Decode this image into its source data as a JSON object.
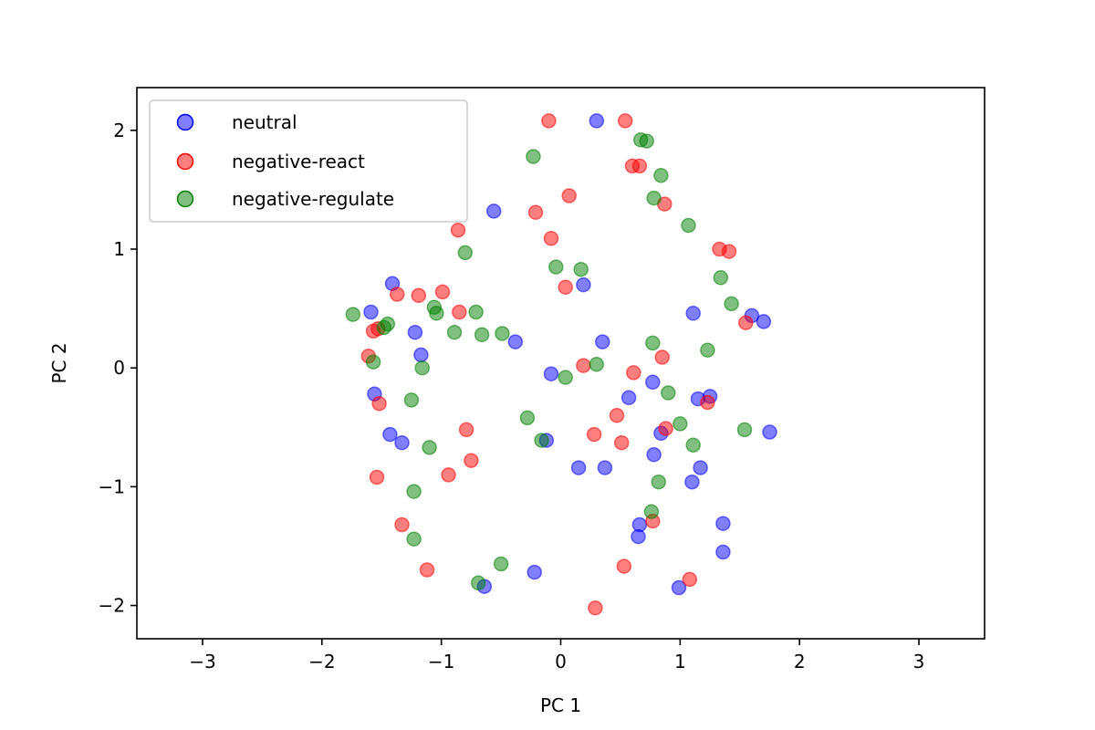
{
  "chart_data": {
    "type": "scatter",
    "title": "",
    "xlabel": "PC 1",
    "ylabel": "PC 2",
    "xlim": [
      -3.55,
      3.55
    ],
    "ylim": [
      -2.28,
      2.36
    ],
    "xticks": [
      -3,
      -2,
      -1,
      0,
      1,
      2,
      3
    ],
    "yticks": [
      -2,
      -1,
      0,
      1,
      2
    ],
    "grid": false,
    "legend_position": "upper-left",
    "series": [
      {
        "name": "neutral",
        "color": "#0000ff",
        "points": [
          [
            0.3,
            2.08
          ],
          [
            -0.56,
            1.32
          ],
          [
            0.19,
            0.7
          ],
          [
            -1.41,
            0.71
          ],
          [
            -1.59,
            0.47
          ],
          [
            -1.22,
            0.3
          ],
          [
            -1.17,
            0.11
          ],
          [
            -0.38,
            0.22
          ],
          [
            0.35,
            0.22
          ],
          [
            -1.56,
            -0.22
          ],
          [
            -1.43,
            -0.56
          ],
          [
            -1.33,
            -0.63
          ],
          [
            -0.08,
            -0.05
          ],
          [
            0.57,
            -0.25
          ],
          [
            0.77,
            -0.12
          ],
          [
            0.84,
            -0.55
          ],
          [
            0.78,
            -0.73
          ],
          [
            -0.12,
            -0.61
          ],
          [
            0.15,
            -0.84
          ],
          [
            0.37,
            -0.84
          ],
          [
            1.1,
            -0.96
          ],
          [
            1.17,
            -0.84
          ],
          [
            1.15,
            -0.26
          ],
          [
            1.25,
            -0.24
          ],
          [
            1.11,
            0.46
          ],
          [
            1.6,
            0.44
          ],
          [
            1.7,
            0.39
          ],
          [
            1.75,
            -0.54
          ],
          [
            1.36,
            -1.31
          ],
          [
            1.36,
            -1.55
          ],
          [
            0.66,
            -1.32
          ],
          [
            0.65,
            -1.42
          ],
          [
            -0.22,
            -1.72
          ],
          [
            -0.64,
            -1.84
          ],
          [
            0.99,
            -1.85
          ]
        ]
      },
      {
        "name": "negative-react",
        "color": "#ff0000",
        "points": [
          [
            -0.1,
            2.08
          ],
          [
            0.54,
            2.08
          ],
          [
            0.6,
            1.7
          ],
          [
            0.66,
            1.7
          ],
          [
            0.07,
            1.45
          ],
          [
            0.87,
            1.38
          ],
          [
            -0.21,
            1.31
          ],
          [
            -0.86,
            1.16
          ],
          [
            -0.08,
            1.09
          ],
          [
            1.33,
            1.0
          ],
          [
            1.41,
            0.98
          ],
          [
            -1.37,
            0.62
          ],
          [
            -1.19,
            0.61
          ],
          [
            -0.99,
            0.64
          ],
          [
            -0.85,
            0.47
          ],
          [
            0.04,
            0.68
          ],
          [
            -1.57,
            0.31
          ],
          [
            -1.53,
            0.33
          ],
          [
            -1.61,
            0.1
          ],
          [
            -1.52,
            -0.3
          ],
          [
            1.55,
            0.38
          ],
          [
            0.85,
            0.09
          ],
          [
            0.19,
            0.02
          ],
          [
            0.61,
            -0.04
          ],
          [
            1.23,
            -0.29
          ],
          [
            0.47,
            -0.4
          ],
          [
            0.28,
            -0.56
          ],
          [
            0.51,
            -0.63
          ],
          [
            0.88,
            -0.51
          ],
          [
            -0.79,
            -0.52
          ],
          [
            -0.75,
            -0.78
          ],
          [
            -0.94,
            -0.9
          ],
          [
            -1.54,
            -0.92
          ],
          [
            -1.33,
            -1.32
          ],
          [
            -1.12,
            -1.7
          ],
          [
            0.77,
            -1.29
          ],
          [
            0.53,
            -1.67
          ],
          [
            1.08,
            -1.78
          ],
          [
            0.29,
            -2.02
          ]
        ]
      },
      {
        "name": "negative-regulate",
        "color": "#008000",
        "points": [
          [
            -0.23,
            1.78
          ],
          [
            0.67,
            1.92
          ],
          [
            0.72,
            1.91
          ],
          [
            0.84,
            1.62
          ],
          [
            0.78,
            1.43
          ],
          [
            1.07,
            1.2
          ],
          [
            -0.8,
            0.97
          ],
          [
            -0.04,
            0.85
          ],
          [
            0.17,
            0.83
          ],
          [
            1.34,
            0.76
          ],
          [
            1.43,
            0.54
          ],
          [
            -1.74,
            0.45
          ],
          [
            -1.48,
            0.34
          ],
          [
            -1.45,
            0.37
          ],
          [
            -1.06,
            0.51
          ],
          [
            -1.04,
            0.46
          ],
          [
            -0.71,
            0.47
          ],
          [
            -0.89,
            0.3
          ],
          [
            -0.66,
            0.28
          ],
          [
            -0.49,
            0.29
          ],
          [
            -1.57,
            0.05
          ],
          [
            -1.16,
            0.0
          ],
          [
            -1.25,
            -0.27
          ],
          [
            0.77,
            0.21
          ],
          [
            0.3,
            0.03
          ],
          [
            0.04,
            -0.08
          ],
          [
            0.9,
            -0.21
          ],
          [
            1.23,
            0.15
          ],
          [
            1.54,
            -0.52
          ],
          [
            1.0,
            -0.47
          ],
          [
            1.11,
            -0.65
          ],
          [
            -0.28,
            -0.42
          ],
          [
            -0.16,
            -0.61
          ],
          [
            -1.1,
            -0.67
          ],
          [
            0.82,
            -0.96
          ],
          [
            -1.23,
            -1.04
          ],
          [
            0.76,
            -1.21
          ],
          [
            -1.23,
            -1.44
          ],
          [
            -0.5,
            -1.65
          ],
          [
            -0.69,
            -1.81
          ]
        ]
      }
    ]
  }
}
